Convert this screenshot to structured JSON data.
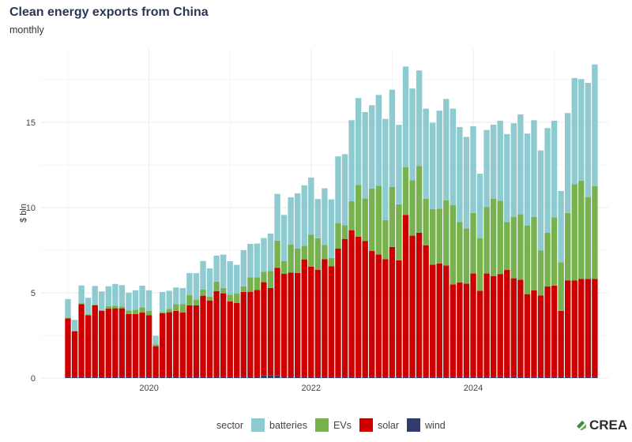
{
  "header": {
    "title": "Clean energy exports from China",
    "subtitle": "monthly"
  },
  "legend": {
    "title": "sector",
    "items": [
      {
        "label": "batteries",
        "color": "#8ecbd1"
      },
      {
        "label": "EVs",
        "color": "#77b24f"
      },
      {
        "label": "solar",
        "color": "#cc0000"
      },
      {
        "label": "wind",
        "color": "#313c6c"
      }
    ]
  },
  "logo": {
    "text": "CREA"
  },
  "chart_data": {
    "type": "bar",
    "stacked": true,
    "title": "Clean energy exports from China",
    "subtitle": "monthly",
    "xlabel": "",
    "ylabel": "$ bln",
    "ylim": [
      0,
      19.3
    ],
    "yticks": [
      0,
      5,
      10,
      15
    ],
    "xticks": [
      "2020",
      "2022",
      "2024"
    ],
    "x_start": "2019-01",
    "x_end": "2025-07",
    "grid": true,
    "legend_position": "bottom",
    "series": [
      {
        "name": "wind",
        "values": [
          0.05,
          0.05,
          0.05,
          0.05,
          0.05,
          0.05,
          0.05,
          0.05,
          0.05,
          0.05,
          0.05,
          0.05,
          0.05,
          0.05,
          0.05,
          0.05,
          0.05,
          0.05,
          0.05,
          0.05,
          0.05,
          0.05,
          0.05,
          0.05,
          0.05,
          0.05,
          0.05,
          0.05,
          0.05,
          0.15,
          0.15,
          0.15,
          0.05,
          0.05,
          0.05,
          0.05,
          0.05,
          0.05,
          0.05,
          0.05,
          0.05,
          0.05,
          0.05,
          0.05,
          0.05,
          0.05,
          0.05,
          0.05,
          0.05,
          0.05,
          0.05,
          0.05,
          0.05,
          0.05,
          0.05,
          0.05,
          0.05,
          0.05,
          0.05,
          0.05,
          0.05,
          0.05,
          0.05,
          0.05,
          0.1,
          0.05,
          0.1,
          0.05,
          0.05,
          0.05,
          0.05,
          0.05,
          0.05,
          0.05,
          0.05,
          0.05,
          0.05,
          0.05,
          0.05
        ]
      },
      {
        "name": "solar",
        "values": [
          3.45,
          2.68,
          4.29,
          3.64,
          4.22,
          3.89,
          4.02,
          4.04,
          4.04,
          3.71,
          3.71,
          3.79,
          3.64,
          1.82,
          3.76,
          3.81,
          3.89,
          3.79,
          4.22,
          4.21,
          4.78,
          4.5,
          5.05,
          4.92,
          4.44,
          4.35,
          5.0,
          5.01,
          5.12,
          5.47,
          5.13,
          6.32,
          6.06,
          6.14,
          6.11,
          6.91,
          6.49,
          6.29,
          6.92,
          6.51,
          7.54,
          8.11,
          8.62,
          8.24,
          7.98,
          7.4,
          7.2,
          6.92,
          7.64,
          6.85,
          9.52,
          8.3,
          8.47,
          7.74,
          6.59,
          6.66,
          6.55,
          5.44,
          5.55,
          5.49,
          6.08,
          5.07,
          6.08,
          5.92,
          6.0,
          6.29,
          5.75,
          5.72,
          4.87,
          5.09,
          4.8,
          5.32,
          5.37,
          3.89,
          5.68,
          5.68,
          5.77,
          5.77,
          5.77
        ]
      },
      {
        "name": "EVs",
        "values": [
          0.05,
          0.05,
          0.05,
          0.05,
          0.05,
          0.05,
          0.15,
          0.15,
          0.1,
          0.2,
          0.25,
          0.3,
          0.25,
          0.1,
          0.05,
          0.2,
          0.4,
          0.5,
          0.6,
          0.34,
          0.37,
          0.23,
          0.55,
          0.31,
          0.39,
          0.55,
          0.33,
          0.84,
          0.73,
          0.61,
          1.0,
          1.59,
          0.74,
          1.65,
          1.43,
          0.79,
          1.86,
          1.86,
          0.83,
          0.48,
          1.5,
          0.81,
          1.7,
          3.04,
          2.51,
          3.66,
          4.03,
          2.29,
          3.51,
          3.29,
          2.79,
          3.25,
          3.92,
          2.72,
          3.27,
          3.23,
          3.83,
          4.66,
          3.54,
          3.24,
          3.55,
          3.09,
          3.89,
          4.54,
          4.29,
          2.8,
          3.61,
          3.83,
          4.03,
          4.3,
          2.64,
          3.16,
          4.01,
          2.85,
          3.95,
          5.64,
          5.75,
          4.78,
          5.44
        ]
      },
      {
        "name": "batteries",
        "values": [
          1.08,
          0.63,
          1.04,
          0.97,
          1.08,
          1.09,
          1.16,
          1.28,
          1.26,
          1.05,
          1.14,
          1.28,
          1.21,
          0.51,
          1.19,
          1.06,
          0.97,
          0.94,
          1.29,
          1.55,
          1.67,
          1.65,
          1.53,
          1.96,
          1.97,
          1.69,
          2.12,
          1.97,
          1.99,
          1.98,
          2.19,
          2.74,
          2.72,
          2.76,
          3.24,
          3.55,
          3.36,
          2.3,
          3.33,
          3.44,
          3.91,
          4.16,
          4.75,
          5.09,
          5.06,
          4.89,
          5.32,
          5.94,
          5.71,
          4.66,
          5.91,
          5.38,
          5.6,
          5.29,
          5.06,
          5.74,
          5.94,
          5.65,
          5.58,
          5.36,
          5.09,
          3.77,
          4.53,
          4.35,
          4.7,
          5.17,
          5.48,
          5.86,
          5.39,
          5.68,
          5.86,
          6.13,
          5.66,
          4.18,
          5.86,
          6.22,
          5.96,
          6.71,
          7.13
        ]
      }
    ]
  }
}
